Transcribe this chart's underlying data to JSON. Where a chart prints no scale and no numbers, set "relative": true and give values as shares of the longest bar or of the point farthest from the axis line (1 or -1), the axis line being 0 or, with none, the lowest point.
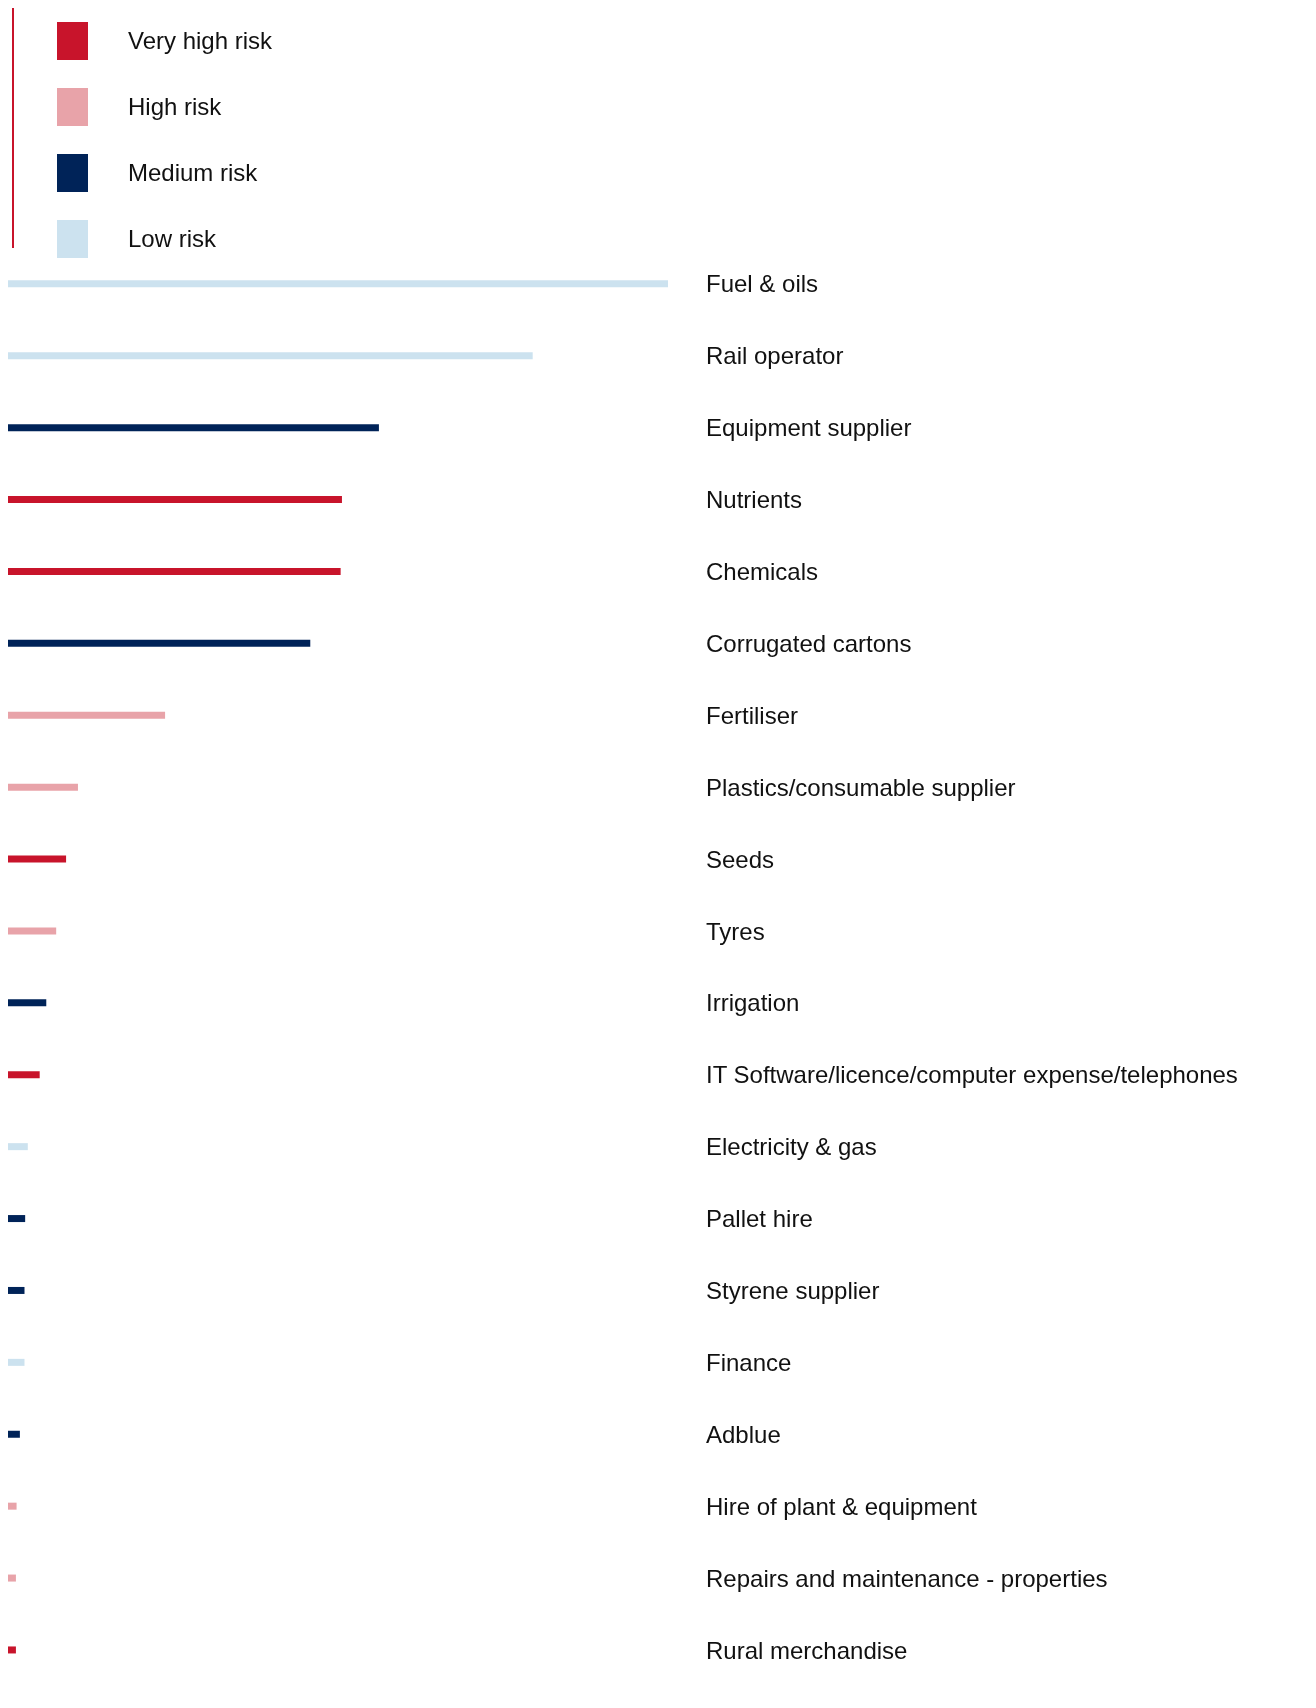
{
  "chart_data": {
    "type": "bar",
    "orientation": "horizontal",
    "stacked": true,
    "relative": true,
    "legend": "top left",
    "categories": [
      "Fuel & oils",
      "Rail operator",
      "Equipment supplier",
      "Nutrients",
      "Chemicals",
      "Corrugated cartons",
      "Fertiliser",
      "Plastics/consumable supplier",
      "Seeds",
      "Tyres",
      "Irrigation",
      "IT Software/licence/computer expense/telephones",
      "Electricity & gas",
      "Pallet hire",
      "Styrene supplier",
      "Finance",
      "Adblue",
      "Hire of plant & equipment",
      "Repairs and maintenance - properties",
      "Rural merchandise"
    ],
    "series": [
      {
        "name": "Very high risk",
        "color": "#c8142b",
        "values": [
          null,
          null,
          null,
          0.506,
          0.504,
          null,
          null,
          null,
          0.088,
          null,
          null,
          0.048,
          null,
          null,
          null,
          null,
          null,
          null,
          null,
          0.012
        ]
      },
      {
        "name": "High risk",
        "color": "#e8a3a9",
        "values": [
          null,
          null,
          null,
          null,
          null,
          null,
          0.238,
          0.106,
          null,
          0.073,
          null,
          null,
          null,
          null,
          null,
          null,
          null,
          0.013,
          0.012,
          null
        ]
      },
      {
        "name": "Medium risk",
        "color": "#002358",
        "values": [
          null,
          null,
          0.562,
          null,
          null,
          0.458,
          null,
          null,
          null,
          null,
          0.058,
          null,
          null,
          0.026,
          0.025,
          null,
          0.018,
          null,
          null,
          null
        ]
      },
      {
        "name": "Low risk",
        "color": "#cce2ef",
        "values": [
          1,
          0.795,
          null,
          null,
          null,
          null,
          null,
          null,
          null,
          null,
          null,
          null,
          0.03,
          null,
          null,
          0.025,
          null,
          null,
          null,
          null
        ]
      }
    ]
  }
}
